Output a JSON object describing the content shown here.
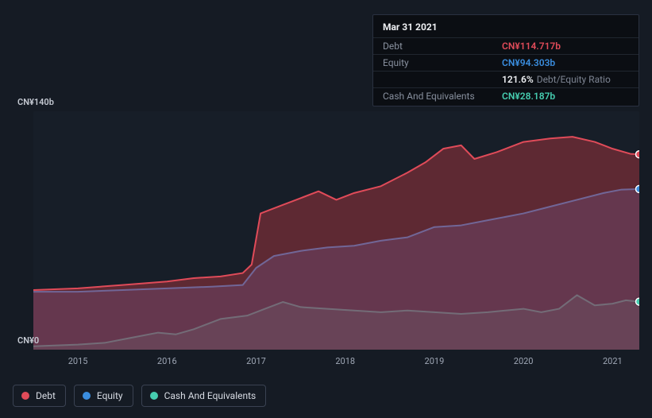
{
  "background_color": "#151b24",
  "plot_background": "rgba(26,32,44,0.55)",
  "chart": {
    "type": "area",
    "y": {
      "min": 0,
      "max": 140,
      "unit_prefix": "CN¥",
      "unit_suffix": "b",
      "top_label": "CN¥140b",
      "bottom_label": "CN¥0",
      "label_color": "#c4c9d2",
      "label_fontsize": 11
    },
    "x": {
      "start": 2014.5,
      "end": 2021.3,
      "ticks": [
        2015,
        2016,
        2017,
        2018,
        2019,
        2020,
        2021
      ],
      "tick_labels": [
        "2015",
        "2016",
        "2017",
        "2018",
        "2019",
        "2020",
        "2021"
      ],
      "tick_color": "#9ea6b4",
      "tick_fontsize": 11
    },
    "series": [
      {
        "key": "debt",
        "label": "Debt",
        "stroke": "#e04b59",
        "fill": "rgba(182,56,65,0.45)",
        "line_width": 2,
        "data": [
          [
            2014.5,
            35
          ],
          [
            2015.0,
            36
          ],
          [
            2015.5,
            38
          ],
          [
            2016.0,
            40
          ],
          [
            2016.3,
            42
          ],
          [
            2016.6,
            43
          ],
          [
            2016.85,
            45
          ],
          [
            2016.95,
            50
          ],
          [
            2017.05,
            80
          ],
          [
            2017.3,
            85
          ],
          [
            2017.5,
            89
          ],
          [
            2017.7,
            93
          ],
          [
            2017.9,
            88
          ],
          [
            2018.1,
            92
          ],
          [
            2018.4,
            96
          ],
          [
            2018.7,
            104
          ],
          [
            2018.9,
            110
          ],
          [
            2019.1,
            118
          ],
          [
            2019.3,
            120
          ],
          [
            2019.45,
            112
          ],
          [
            2019.7,
            116
          ],
          [
            2020.0,
            122
          ],
          [
            2020.3,
            124
          ],
          [
            2020.55,
            125
          ],
          [
            2020.8,
            122
          ],
          [
            2021.0,
            118
          ],
          [
            2021.2,
            115
          ],
          [
            2021.3,
            114.7
          ]
        ]
      },
      {
        "key": "equity",
        "label": "Equity",
        "stroke": "#3a8dde",
        "fill": "rgba(52,86,150,0.45)",
        "line_width": 2,
        "data": [
          [
            2014.5,
            34
          ],
          [
            2015.0,
            34
          ],
          [
            2015.5,
            35
          ],
          [
            2016.0,
            36
          ],
          [
            2016.5,
            37
          ],
          [
            2016.85,
            38
          ],
          [
            2017.0,
            48
          ],
          [
            2017.2,
            55
          ],
          [
            2017.5,
            58
          ],
          [
            2017.8,
            60
          ],
          [
            2018.1,
            61
          ],
          [
            2018.4,
            64
          ],
          [
            2018.7,
            66
          ],
          [
            2019.0,
            72
          ],
          [
            2019.3,
            73
          ],
          [
            2019.6,
            76
          ],
          [
            2020.0,
            80
          ],
          [
            2020.3,
            84
          ],
          [
            2020.6,
            88
          ],
          [
            2020.9,
            92
          ],
          [
            2021.1,
            94
          ],
          [
            2021.3,
            94.3
          ]
        ]
      },
      {
        "key": "cash",
        "label": "Cash And Equivalents",
        "stroke": "#46cdb0",
        "fill": "rgba(54,150,131,0.35)",
        "line_width": 2,
        "data": [
          [
            2014.5,
            2
          ],
          [
            2015.0,
            3
          ],
          [
            2015.3,
            4
          ],
          [
            2015.6,
            7
          ],
          [
            2015.9,
            10
          ],
          [
            2016.1,
            9
          ],
          [
            2016.3,
            12
          ],
          [
            2016.6,
            18
          ],
          [
            2016.9,
            20
          ],
          [
            2017.1,
            24
          ],
          [
            2017.3,
            28
          ],
          [
            2017.5,
            25
          ],
          [
            2017.8,
            24
          ],
          [
            2018.1,
            23
          ],
          [
            2018.4,
            22
          ],
          [
            2018.7,
            23
          ],
          [
            2019.0,
            22
          ],
          [
            2019.3,
            21
          ],
          [
            2019.6,
            22
          ],
          [
            2020.0,
            24
          ],
          [
            2020.2,
            22
          ],
          [
            2020.4,
            24
          ],
          [
            2020.6,
            32
          ],
          [
            2020.8,
            26
          ],
          [
            2021.0,
            27
          ],
          [
            2021.15,
            29
          ],
          [
            2021.3,
            28.2
          ]
        ]
      }
    ],
    "end_dots": true
  },
  "tooltip": {
    "title": "Mar 31 2021",
    "rows": [
      {
        "label": "Debt",
        "value": "CN¥114.717b",
        "color": "#e04b59"
      },
      {
        "label": "Equity",
        "value": "CN¥94.303b",
        "color": "#3a8dde"
      },
      {
        "label": "",
        "value": "121.6%",
        "sub": "Debt/Equity Ratio",
        "color": "#eef0f3"
      },
      {
        "label": "Cash And Equivalents",
        "value": "CN¥28.187b",
        "color": "#46cdb0"
      }
    ],
    "bg": "#0b0e13",
    "border": "#2a3140",
    "label_color": "#88909e"
  },
  "legend": {
    "items": [
      {
        "label": "Debt",
        "color": "#e04b59"
      },
      {
        "label": "Equity",
        "color": "#3a8dde"
      },
      {
        "label": "Cash And Equivalents",
        "color": "#46cdb0"
      }
    ],
    "border": "#3a4252",
    "text_color": "#d7dbe3",
    "fontsize": 12
  }
}
